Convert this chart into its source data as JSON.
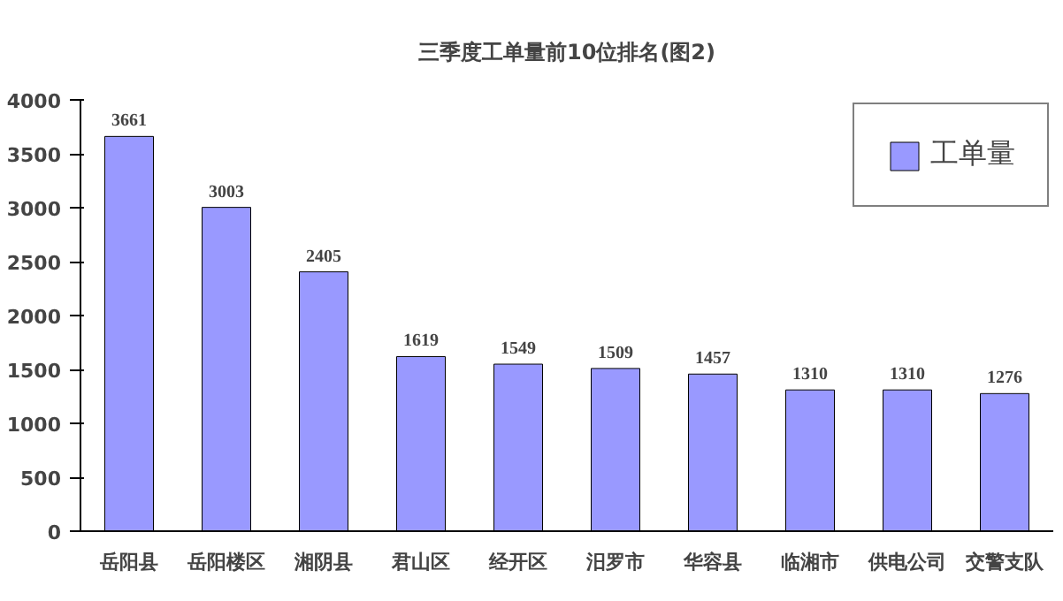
{
  "chart_data": {
    "type": "bar",
    "title": "三季度工单量前10位排名(图2)",
    "categories": [
      "岳阳县",
      "岳阳楼区",
      "湘阴县",
      "君山区",
      "经开区",
      "汨罗市",
      "华容县",
      "临湘市",
      "供电公司",
      "交警支队"
    ],
    "series": [
      {
        "name": "工单量",
        "color": "#9999ff",
        "values": [
          3661,
          3003,
          2405,
          1619,
          1549,
          1509,
          1457,
          1310,
          1310,
          1276
        ]
      }
    ],
    "ylim": [
      0,
      4000
    ],
    "yticks": [
      0,
      500,
      1000,
      1500,
      2000,
      2500,
      3000,
      3500,
      4000
    ],
    "data_labels": true,
    "grid": false,
    "legend": "top right"
  }
}
